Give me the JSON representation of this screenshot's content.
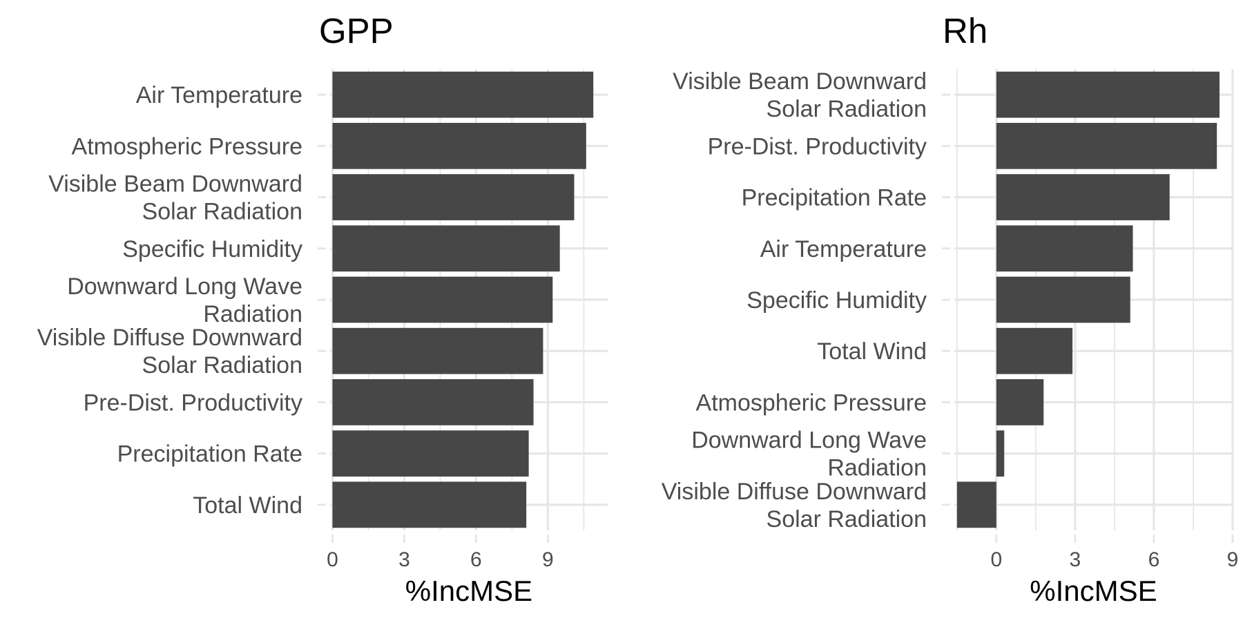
{
  "colors": {
    "bar": "#474747",
    "grid": "#e6e6e6",
    "text": "#4d4d4d",
    "title": "#000000",
    "background": "#ffffff"
  },
  "chart_data": [
    {
      "type": "bar",
      "orientation": "horizontal",
      "title": "GPP",
      "xlabel": "%IncMSE",
      "ylabel": "",
      "xlim": [
        -0.1,
        11.5
      ],
      "xticks": [
        0,
        3,
        6,
        9
      ],
      "xtick_labels": [
        "0",
        "3",
        "6",
        "9"
      ],
      "grid": true,
      "legend": "none",
      "categories": [
        [
          "Air Temperature"
        ],
        [
          "Atmospheric Pressure"
        ],
        [
          "Visible Beam Downward",
          "Solar Radiation"
        ],
        [
          "Specific Humidity"
        ],
        [
          "Downward Long Wave",
          "Radiation"
        ],
        [
          "Visible Diffuse Downward",
          "Solar Radiation"
        ],
        [
          "Pre-Dist. Productivity"
        ],
        [
          "Precipitation Rate"
        ],
        [
          "Total Wind"
        ]
      ],
      "values": [
        10.9,
        10.6,
        10.1,
        9.5,
        9.2,
        8.8,
        8.4,
        8.2,
        8.1
      ]
    },
    {
      "type": "bar",
      "orientation": "horizontal",
      "title": "Rh",
      "xlabel": "%IncMSE",
      "ylabel": "",
      "xlim": [
        -1.6,
        9.0
      ],
      "xticks": [
        0,
        3,
        6,
        9
      ],
      "xtick_labels": [
        "0",
        "3",
        "6",
        "9"
      ],
      "grid": true,
      "legend": "none",
      "categories": [
        [
          "Visible Beam Downward",
          "Solar Radiation"
        ],
        [
          "Pre-Dist. Productivity"
        ],
        [
          "Precipitation Rate"
        ],
        [
          "Air Temperature"
        ],
        [
          "Specific Humidity"
        ],
        [
          "Total Wind"
        ],
        [
          "Atmospheric Pressure"
        ],
        [
          "Downward Long Wave",
          "Radiation"
        ],
        [
          "Visible Diffuse Downward",
          "Solar Radiation"
        ]
      ],
      "values": [
        8.5,
        8.4,
        6.6,
        5.2,
        5.1,
        2.9,
        1.8,
        0.3,
        -1.5
      ]
    }
  ]
}
